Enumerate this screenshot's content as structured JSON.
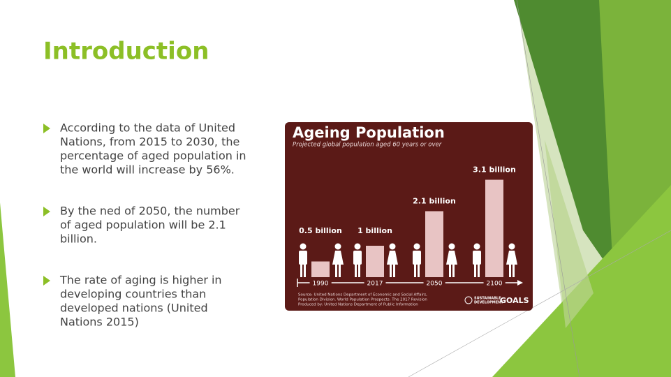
{
  "slide": {
    "title": "Introduction",
    "bullets": [
      [
        "According to the data of United",
        "Nations, from 2015 to 2030, the",
        "percentage of aged population in",
        "the world will increase by 56%."
      ],
      [
        "By the ned of 2050, the number",
        "of aged population will be 2.1",
        "billion."
      ],
      [
        "The rate of aging is higher in",
        "developing countries than",
        "developed nations (United",
        "Nations 2015)"
      ]
    ]
  },
  "chart_data": {
    "type": "bar",
    "title": "Ageing Population",
    "subtitle": "Projected global population aged 60 years or over",
    "categories": [
      "1990",
      "2017",
      "2050",
      "2100"
    ],
    "values": [
      0.5,
      1,
      2.1,
      3.1
    ],
    "value_labels": [
      "0.5 billion",
      "1 billion",
      "2.1 billion",
      "3.1 billion"
    ],
    "color": "#e8c4c4",
    "source": [
      "Source: United Nations Department of Economic and Social Affairs,",
      "Population Division. World Population Prospects: The 2017 Revision",
      "Produced by: United Nations Department of Public Information"
    ],
    "logo": [
      "SUSTAINABLE",
      "DEVELOPMENT",
      "GOALS"
    ]
  }
}
